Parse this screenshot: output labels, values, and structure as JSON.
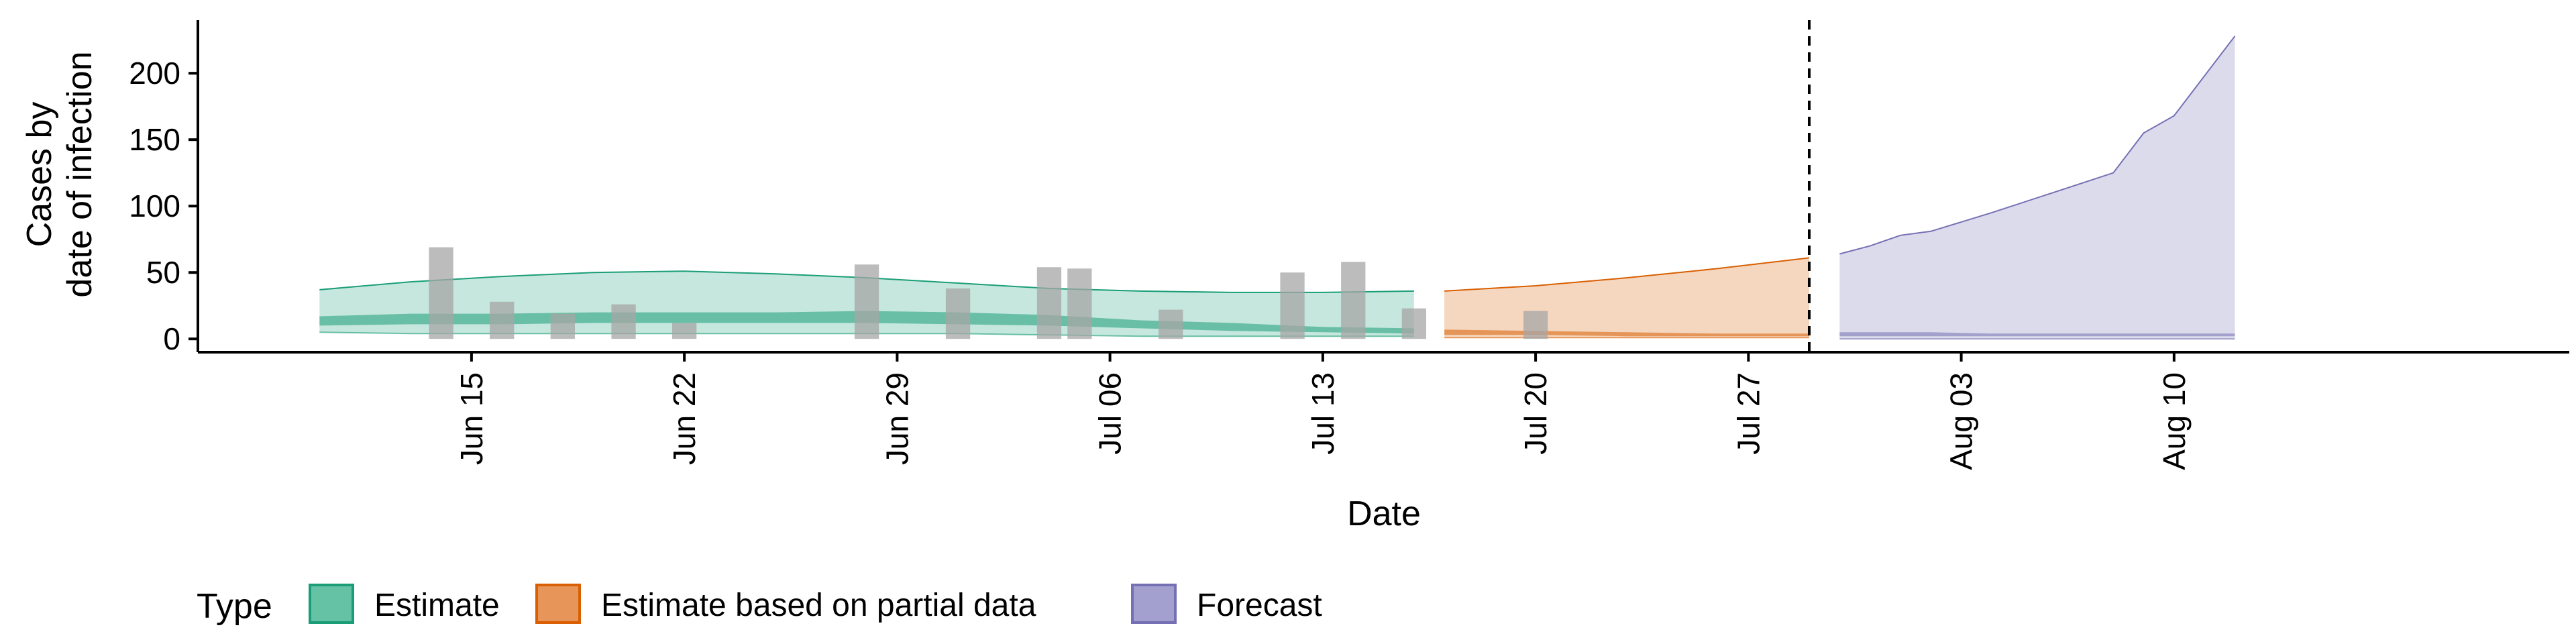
{
  "chart_data": {
    "type": "area",
    "xlabel": "Date",
    "ylabel_lines": [
      "Cases by",
      "date of infection"
    ],
    "x_ticks": [
      "2020-06-15",
      "2020-06-22",
      "2020-06-29",
      "2020-07-06",
      "2020-07-13",
      "2020-07-20",
      "2020-07-27",
      "2020-08-03",
      "2020-08-10"
    ],
    "x_tick_labels": [
      "Jun 15",
      "Jun 22",
      "Jun 29",
      "Jul 06",
      "Jul 13",
      "Jul 20",
      "Jul 27",
      "Aug 03",
      "Aug 10"
    ],
    "x_range": [
      "2020-06-06",
      "2020-08-23"
    ],
    "y_ticks": [
      0,
      50,
      100,
      150,
      200
    ],
    "y_range": [
      -10,
      240
    ],
    "forecast_start_line": "2020-07-29",
    "legend": {
      "title": "Type",
      "placement": "bottom-left",
      "entries": [
        {
          "label": "Estimate",
          "fill": "#66c2a5",
          "stroke": "#1b9e77"
        },
        {
          "label": "Estimate based on partial data",
          "fill": "#e8955a",
          "stroke": "#d95f02"
        },
        {
          "label": "Forecast",
          "fill": "#a3a0cf",
          "stroke": "#7570b3"
        }
      ]
    },
    "reported_cases": [
      {
        "date": "2020-06-14",
        "value": 69
      },
      {
        "date": "2020-06-16",
        "value": 28
      },
      {
        "date": "2020-06-18",
        "value": 19
      },
      {
        "date": "2020-06-20",
        "value": 26
      },
      {
        "date": "2020-06-22",
        "value": 12
      },
      {
        "date": "2020-06-28",
        "value": 56
      },
      {
        "date": "2020-07-01",
        "value": 38
      },
      {
        "date": "2020-07-04",
        "value": 54
      },
      {
        "date": "2020-07-05",
        "value": 53
      },
      {
        "date": "2020-07-08",
        "value": 22
      },
      {
        "date": "2020-07-12",
        "value": 50
      },
      {
        "date": "2020-07-14",
        "value": 58
      },
      {
        "date": "2020-07-16",
        "value": 23
      },
      {
        "date": "2020-07-20",
        "value": 21
      }
    ],
    "series": [
      {
        "name": "Estimate",
        "color": "#1b9e77",
        "dates": [
          "2020-06-10",
          "2020-06-13",
          "2020-06-16",
          "2020-06-19",
          "2020-06-22",
          "2020-06-25",
          "2020-06-28",
          "2020-07-01",
          "2020-07-04",
          "2020-07-07",
          "2020-07-10",
          "2020-07-13",
          "2020-07-16"
        ],
        "outer_upper": [
          37,
          43,
          47,
          50,
          51,
          49,
          46,
          42,
          38,
          36,
          35,
          35,
          36
        ],
        "outer_lower": [
          5,
          4,
          4,
          4,
          4,
          4,
          4,
          4,
          3,
          2,
          2,
          2,
          2
        ],
        "inner_upper": [
          17,
          19,
          19,
          20,
          20,
          20,
          21,
          20,
          18,
          14,
          12,
          9,
          8
        ],
        "inner_lower": [
          10,
          11,
          11,
          12,
          12,
          12,
          12,
          11,
          10,
          8,
          6,
          5,
          4
        ]
      },
      {
        "name": "Estimate based on partial data",
        "color": "#d95f02",
        "dates": [
          "2020-07-17",
          "2020-07-20",
          "2020-07-23",
          "2020-07-26",
          "2020-07-29"
        ],
        "outer_upper": [
          36,
          40,
          46,
          53,
          61
        ],
        "outer_lower": [
          1,
          1,
          1,
          1,
          1
        ],
        "inner_upper": [
          7,
          6,
          5,
          4,
          4
        ],
        "inner_lower": [
          3,
          3,
          2,
          2,
          2
        ]
      },
      {
        "name": "Forecast",
        "color": "#7570b3",
        "dates": [
          "2020-07-30",
          "2020-07-31",
          "2020-08-01",
          "2020-08-02",
          "2020-08-04",
          "2020-08-06",
          "2020-08-08",
          "2020-08-09",
          "2020-08-10",
          "2020-08-12"
        ],
        "outer_upper": [
          64,
          70,
          78,
          81,
          95,
          110,
          125,
          155,
          168,
          228
        ],
        "outer_lower": [
          0,
          0,
          0,
          0,
          0,
          0,
          0,
          0,
          0,
          0
        ],
        "inner_upper": [
          5,
          5,
          5,
          5,
          4,
          4,
          4,
          4,
          4,
          4
        ],
        "inner_lower": [
          2,
          2,
          2,
          2,
          2,
          2,
          2,
          2,
          2,
          2
        ]
      }
    ]
  }
}
